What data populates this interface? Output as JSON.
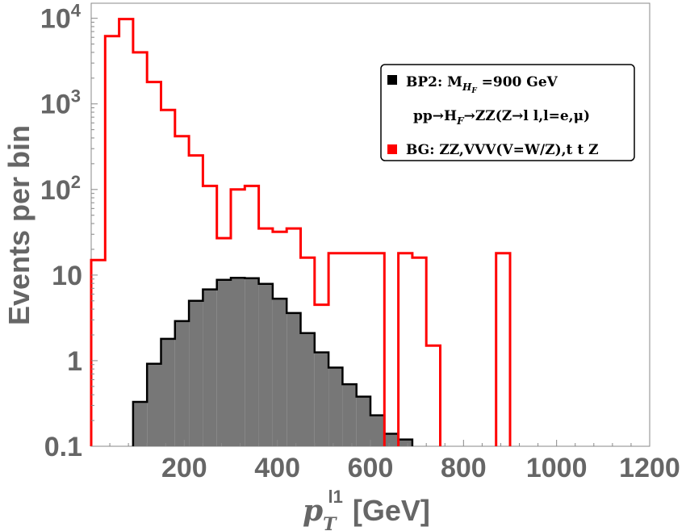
{
  "chart_data": {
    "type": "histogram",
    "title": "",
    "xlabel_main": "p",
    "xlabel_sub": "T",
    "xlabel_sup": "l1",
    "xlabel_unit": "[GeV]",
    "ylabel": "Events per bin",
    "xlim": [
      0,
      1200
    ],
    "ylim": [
      0.1,
      15000
    ],
    "yscale": "log",
    "x_ticks": [
      200,
      400,
      600,
      800,
      1000,
      1200
    ],
    "x_tick_labels": [
      "200",
      "400",
      "600",
      "800",
      "1000",
      "1200"
    ],
    "y_ticks": [
      0.1,
      1,
      10,
      100,
      1000,
      10000
    ],
    "y_tick_labels": {
      "0.1": "0.1",
      "1": "1",
      "10": "10",
      "100": "10",
      "1000": "10",
      "10000": "10"
    },
    "y_tick_exponents": {
      "100": "2",
      "1000": "3",
      "10000": "4"
    },
    "bin_width": 30,
    "series": [
      {
        "name": "BP2",
        "style": "filled",
        "fill": "#777777",
        "stroke": "#000000",
        "bins": [
          {
            "x0": 90,
            "value": 0.33
          },
          {
            "x0": 120,
            "value": 0.92
          },
          {
            "x0": 150,
            "value": 1.8
          },
          {
            "x0": 180,
            "value": 2.9
          },
          {
            "x0": 210,
            "value": 5.0
          },
          {
            "x0": 240,
            "value": 6.8
          },
          {
            "x0": 270,
            "value": 8.8
          },
          {
            "x0": 300,
            "value": 9.3
          },
          {
            "x0": 330,
            "value": 9.2
          },
          {
            "x0": 360,
            "value": 7.9
          },
          {
            "x0": 390,
            "value": 5.3
          },
          {
            "x0": 420,
            "value": 3.6
          },
          {
            "x0": 450,
            "value": 2.1
          },
          {
            "x0": 480,
            "value": 1.25
          },
          {
            "x0": 510,
            "value": 0.83
          },
          {
            "x0": 540,
            "value": 0.53
          },
          {
            "x0": 570,
            "value": 0.38
          },
          {
            "x0": 600,
            "value": 0.23
          },
          {
            "x0": 630,
            "value": 0.14
          },
          {
            "x0": 660,
            "value": 0.12
          }
        ]
      },
      {
        "name": "BG",
        "style": "step",
        "stroke": "#ff0000",
        "bins": [
          {
            "x0": 0,
            "value": 15
          },
          {
            "x0": 30,
            "value": 6200
          },
          {
            "x0": 60,
            "value": 9800
          },
          {
            "x0": 90,
            "value": 4000
          },
          {
            "x0": 120,
            "value": 1800
          },
          {
            "x0": 150,
            "value": 850
          },
          {
            "x0": 180,
            "value": 420
          },
          {
            "x0": 210,
            "value": 250
          },
          {
            "x0": 240,
            "value": 110
          },
          {
            "x0": 270,
            "value": 27
          },
          {
            "x0": 300,
            "value": 100
          },
          {
            "x0": 330,
            "value": 110
          },
          {
            "x0": 360,
            "value": 35
          },
          {
            "x0": 390,
            "value": 32
          },
          {
            "x0": 420,
            "value": 35
          },
          {
            "x0": 450,
            "value": 16
          },
          {
            "x0": 480,
            "value": 4.5
          },
          {
            "x0": 510,
            "value": 18
          },
          {
            "x0": 540,
            "value": 18
          },
          {
            "x0": 570,
            "value": 18
          },
          {
            "x0": 600,
            "value": 18
          },
          {
            "x0": 660,
            "value": 18
          },
          {
            "x0": 690,
            "value": 16
          },
          {
            "x0": 720,
            "value": 1.5
          },
          {
            "x0": 870,
            "value": 18
          }
        ]
      }
    ],
    "legend": {
      "placement": "top-right",
      "entries": [
        {
          "swatch": "#000000",
          "text": "BP2: M",
          "sub": "H",
          "subsub": "F",
          "tail": " =900 GeV"
        },
        {
          "swatch": null,
          "text": "pp→H",
          "sub": "F",
          "tail": "→ZZ(Z→l l,l=e,μ)"
        },
        {
          "swatch": "#ff0000",
          "text": "BG: ZZ,VVV(V=W/Z),t t Z"
        }
      ]
    }
  }
}
